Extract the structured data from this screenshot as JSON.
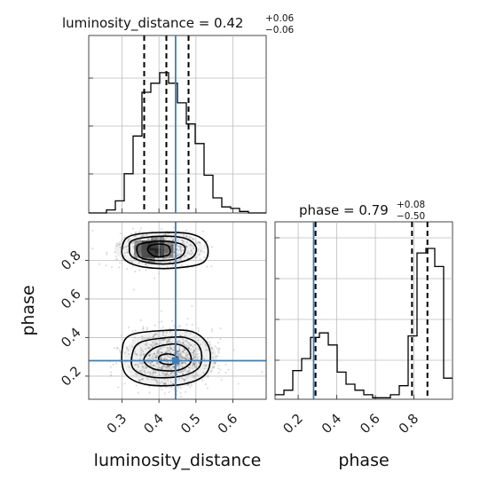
{
  "chart_data": [
    {
      "type": "histogram",
      "panel": "top-left",
      "title": "luminosity_distance = 0.42",
      "title_sup": "+0.06",
      "title_sub": "−0.06",
      "xlim": [
        0.21,
        0.69
      ],
      "ylim": [
        0,
        1
      ],
      "x_ticks": [
        0.3,
        0.4,
        0.5,
        0.6
      ],
      "grid": true,
      "bin_edges": [
        0.21,
        0.234,
        0.258,
        0.282,
        0.306,
        0.33,
        0.354,
        0.378,
        0.402,
        0.426,
        0.45,
        0.474,
        0.498,
        0.522,
        0.546,
        0.57,
        0.594,
        0.618,
        0.642,
        0.666,
        0.69
      ],
      "counts": [
        0.0,
        0.0,
        0.02,
        0.08,
        0.26,
        0.51,
        0.8,
        0.86,
        0.93,
        0.86,
        0.73,
        0.59,
        0.46,
        0.25,
        0.1,
        0.04,
        0.03,
        0.01,
        0.0,
        0.0
      ],
      "quantiles": [
        0.36,
        0.42,
        0.48
      ],
      "truth": 0.445
    },
    {
      "type": "histogram",
      "panel": "bottom-right",
      "title": "phase = 0.79",
      "title_sup": "+0.08",
      "title_sub": "−0.50",
      "xlim": [
        0.08,
        1.0
      ],
      "ylim": [
        0,
        1
      ],
      "x_ticks": [
        0.2,
        0.4,
        0.6,
        0.8
      ],
      "x_tick_labels": [
        "0.2",
        "0.4",
        "0.6",
        "0.8"
      ],
      "xlabel": "phase",
      "grid": true,
      "bin_edges": [
        0.08,
        0.126,
        0.172,
        0.218,
        0.264,
        0.31,
        0.356,
        0.402,
        0.448,
        0.494,
        0.54,
        0.586,
        0.632,
        0.678,
        0.724,
        0.77,
        0.816,
        0.862,
        0.908,
        0.954,
        1.0
      ],
      "counts": [
        0.03,
        0.06,
        0.19,
        0.27,
        0.41,
        0.44,
        0.36,
        0.18,
        0.1,
        0.06,
        0.03,
        0.01,
        0.01,
        0.03,
        0.09,
        0.42,
        0.97,
        1.0,
        0.88,
        0.14
      ],
      "quantiles": [
        0.29,
        0.79,
        0.87
      ],
      "truth": 0.28
    },
    {
      "type": "2d-histogram",
      "panel": "bottom-left",
      "xlim": [
        0.21,
        0.69
      ],
      "ylim": [
        0.08,
        1.0
      ],
      "x_ticks": [
        0.3,
        0.4,
        0.5,
        0.6
      ],
      "y_ticks": [
        0.2,
        0.4,
        0.6,
        0.8
      ],
      "xlabel": "luminosity_distance",
      "ylabel": "phase",
      "grid": true,
      "modes": [
        {
          "x": 0.4,
          "y": 0.86,
          "dense_cells_x": [
            0.37,
            0.395
          ],
          "dense_cells_y": [
            0.845,
            0.87
          ]
        },
        {
          "x": 0.43,
          "y": 0.29
        }
      ],
      "contours": [
        [
          [
            0.39,
            0.82
          ],
          [
            0.42,
            0.825
          ],
          [
            0.43,
            0.84
          ],
          [
            0.425,
            0.875
          ],
          [
            0.4,
            0.885
          ],
          [
            0.375,
            0.875
          ],
          [
            0.37,
            0.85
          ]
        ],
        [
          [
            0.34,
            0.86
          ],
          [
            0.35,
            0.885
          ],
          [
            0.4,
            0.9
          ],
          [
            0.45,
            0.89
          ],
          [
            0.47,
            0.87
          ],
          [
            0.465,
            0.83
          ],
          [
            0.44,
            0.805
          ],
          [
            0.39,
            0.8
          ],
          [
            0.35,
            0.815
          ]
        ],
        [
          [
            0.32,
            0.86
          ],
          [
            0.33,
            0.905
          ],
          [
            0.4,
            0.925
          ],
          [
            0.47,
            0.915
          ],
          [
            0.5,
            0.87
          ],
          [
            0.49,
            0.815
          ],
          [
            0.44,
            0.785
          ],
          [
            0.38,
            0.785
          ],
          [
            0.33,
            0.815
          ]
        ],
        [
          [
            0.3,
            0.86
          ],
          [
            0.32,
            0.925
          ],
          [
            0.4,
            0.945
          ],
          [
            0.49,
            0.935
          ],
          [
            0.53,
            0.88
          ],
          [
            0.52,
            0.79
          ],
          [
            0.44,
            0.76
          ],
          [
            0.36,
            0.765
          ],
          [
            0.31,
            0.8
          ]
        ],
        [
          [
            0.405,
            0.27
          ],
          [
            0.43,
            0.26
          ],
          [
            0.45,
            0.275
          ],
          [
            0.445,
            0.305
          ],
          [
            0.42,
            0.315
          ],
          [
            0.4,
            0.3
          ]
        ],
        [
          [
            0.37,
            0.32
          ],
          [
            0.4,
            0.355
          ],
          [
            0.45,
            0.365
          ],
          [
            0.48,
            0.33
          ],
          [
            0.485,
            0.27
          ],
          [
            0.45,
            0.23
          ],
          [
            0.39,
            0.235
          ],
          [
            0.36,
            0.275
          ]
        ],
        [
          [
            0.33,
            0.33
          ],
          [
            0.35,
            0.375
          ],
          [
            0.4,
            0.395
          ],
          [
            0.47,
            0.4
          ],
          [
            0.51,
            0.35
          ],
          [
            0.51,
            0.25
          ],
          [
            0.46,
            0.2
          ],
          [
            0.38,
            0.195
          ],
          [
            0.33,
            0.24
          ]
        ],
        [
          [
            0.3,
            0.33
          ],
          [
            0.32,
            0.41
          ],
          [
            0.4,
            0.435
          ],
          [
            0.49,
            0.43
          ],
          [
            0.535,
            0.35
          ],
          [
            0.53,
            0.22
          ],
          [
            0.47,
            0.16
          ],
          [
            0.37,
            0.155
          ],
          [
            0.31,
            0.21
          ]
        ]
      ],
      "truth": [
        0.445,
        0.28
      ]
    }
  ]
}
